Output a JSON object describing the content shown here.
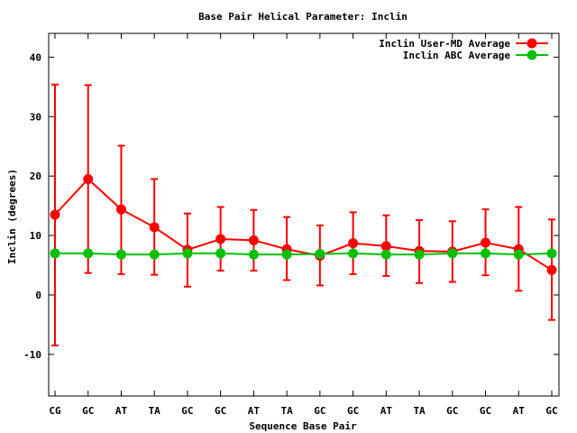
{
  "chart_data": {
    "type": "line",
    "title": "Base Pair Helical Parameter: Inclin",
    "xlabel": "Sequence Base Pair",
    "ylabel": "Inclin (degrees)",
    "categories": [
      "CG",
      "GC",
      "AT",
      "TA",
      "GC",
      "GC",
      "AT",
      "TA",
      "GC",
      "GC",
      "AT",
      "TA",
      "GC",
      "GC",
      "AT",
      "GC"
    ],
    "ylim": [
      -17,
      44
    ],
    "yticks": [
      -10,
      0,
      10,
      20,
      30,
      40
    ],
    "ytick_labels": [
      "-10",
      "0",
      "10",
      "20",
      "30",
      "40"
    ],
    "legend_position": "top-right",
    "grid": false,
    "series": [
      {
        "name": "Inclin User-MD Average",
        "color": "#ff0000",
        "values": [
          13.5,
          19.5,
          14.4,
          11.4,
          7.6,
          9.4,
          9.2,
          7.7,
          6.6,
          8.7,
          8.2,
          7.4,
          7.3,
          8.8,
          7.7,
          4.2
        ],
        "err_low": [
          -8.5,
          3.7,
          3.5,
          3.4,
          1.4,
          4.1,
          4.1,
          2.5,
          1.6,
          3.5,
          3.2,
          2.0,
          2.2,
          3.3,
          0.7,
          -4.2
        ],
        "err_high": [
          35.4,
          35.3,
          25.1,
          19.5,
          13.7,
          14.8,
          14.3,
          13.1,
          11.7,
          13.9,
          13.4,
          12.6,
          12.4,
          14.4,
          14.8,
          12.7
        ]
      },
      {
        "name": "Inclin ABC Average",
        "color": "#00c000",
        "values": [
          7.0,
          7.0,
          6.8,
          6.8,
          7.0,
          7.0,
          6.8,
          6.8,
          6.9,
          7.0,
          6.8,
          6.8,
          7.0,
          7.0,
          6.8,
          7.0
        ]
      }
    ]
  }
}
